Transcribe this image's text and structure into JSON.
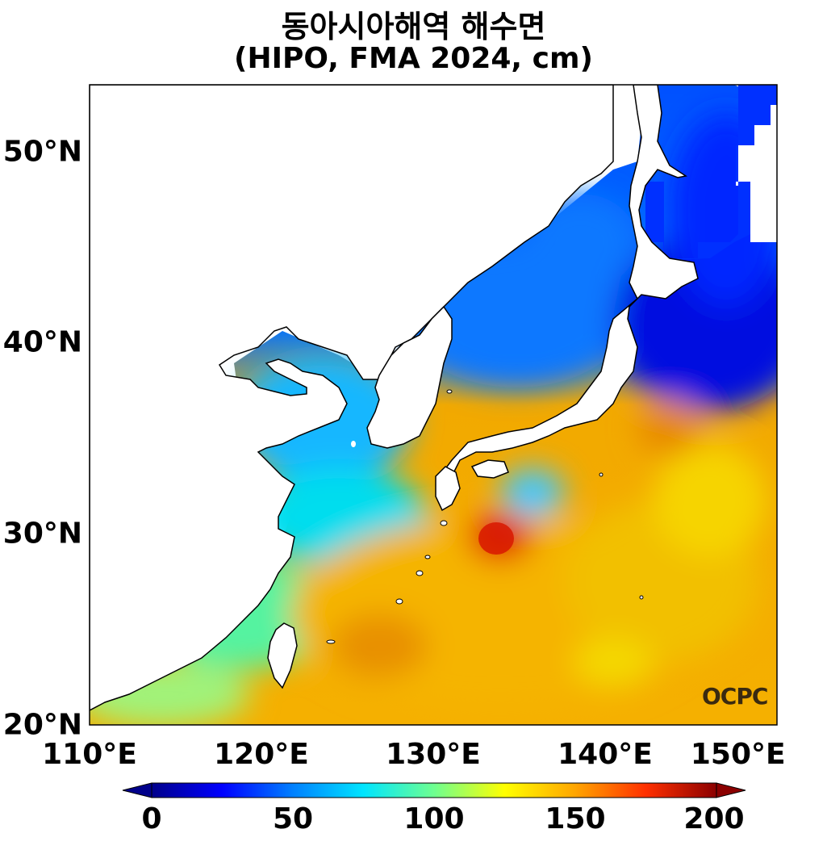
{
  "title": {
    "line1": "동아시아해역 해수면",
    "line2": "(HIPO, FMA 2024, cm)"
  },
  "map": {
    "lat_ticks": [
      "50°N",
      "40°N",
      "30°N",
      "20°N"
    ],
    "lon_ticks": [
      "110°E",
      "120°E",
      "130°E",
      "140°E",
      "150°E"
    ],
    "extent": {
      "lon": [
        110,
        150
      ],
      "lat": [
        20,
        53.5
      ]
    }
  },
  "colorbar": {
    "ticks": [
      "0",
      "50",
      "100",
      "150",
      "200"
    ],
    "range": [
      0,
      200
    ],
    "extend": "both",
    "colors": [
      "#00008b",
      "#0000ff",
      "#0080ff",
      "#00e5ff",
      "#6eff90",
      "#ffff00",
      "#ffa500",
      "#ff3000",
      "#8b0000"
    ]
  },
  "logo": "OCPC"
}
